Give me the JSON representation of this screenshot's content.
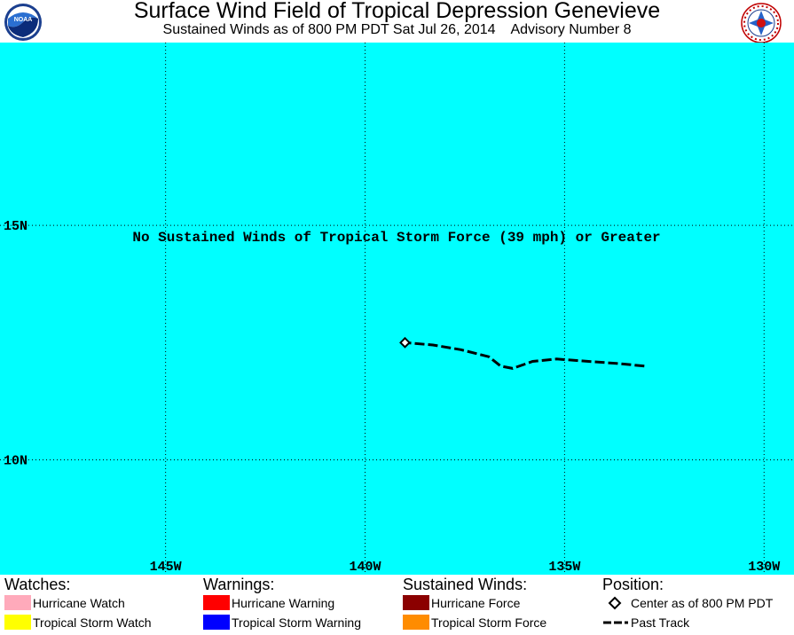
{
  "header": {
    "title": "Surface Wind Field of Tropical Depression Genevieve",
    "subtitle": "Sustained Winds as of 800 PM PDT Sat Jul 26, 2014    Advisory Number 8",
    "left_logo_icon": "noaa-logo",
    "left_logo_text": "NOAA",
    "right_logo_icon": "national-weather-service-logo"
  },
  "map": {
    "background_color": "#00ffff",
    "message": "No Sustained Winds of Tropical Storm Force (39 mph) or Greater",
    "lat_labels": [
      {
        "value": 15,
        "label": "15N"
      },
      {
        "value": 10,
        "label": "10N"
      }
    ],
    "lon_labels": [
      {
        "value": -145,
        "label": "145W"
      },
      {
        "value": -140,
        "label": "140W"
      },
      {
        "value": -135,
        "label": "135W"
      },
      {
        "value": -130,
        "label": "130W"
      }
    ],
    "extent": {
      "lon_min": -149.15,
      "lon_max": -129.25,
      "lat_min": 7.55,
      "lat_max": 18.9
    },
    "past_track": [
      {
        "lon": -133.0,
        "lat": 12.0
      },
      {
        "lon": -133.6,
        "lat": 12.05
      },
      {
        "lon": -134.4,
        "lat": 12.1
      },
      {
        "lon": -135.2,
        "lat": 12.15
      },
      {
        "lon": -135.8,
        "lat": 12.1
      },
      {
        "lon": -136.3,
        "lat": 11.95
      },
      {
        "lon": -136.6,
        "lat": 12.0
      },
      {
        "lon": -136.9,
        "lat": 12.2
      },
      {
        "lon": -137.6,
        "lat": 12.35
      },
      {
        "lon": -138.3,
        "lat": 12.45
      },
      {
        "lon": -139.0,
        "lat": 12.5
      }
    ],
    "center": {
      "lon": -139.0,
      "lat": 12.5
    }
  },
  "legend": {
    "watches": {
      "heading": "Watches:",
      "items": [
        {
          "label": "Hurricane Watch",
          "color": "#ffaabb"
        },
        {
          "label": "Tropical Storm Watch",
          "color": "#ffff00"
        }
      ]
    },
    "warnings": {
      "heading": "Warnings:",
      "items": [
        {
          "label": "Hurricane Warning",
          "color": "#ff0000"
        },
        {
          "label": "Tropical Storm Warning",
          "color": "#0000ff"
        }
      ]
    },
    "winds": {
      "heading": "Sustained Winds:",
      "items": [
        {
          "label": "Hurricane Force",
          "color": "#8b0000"
        },
        {
          "label": "Tropical Storm Force",
          "color": "#ff8c00"
        }
      ]
    },
    "position": {
      "heading": "Position:",
      "center_label": "Center as of 800 PM PDT",
      "track_label": "Past Track"
    }
  }
}
